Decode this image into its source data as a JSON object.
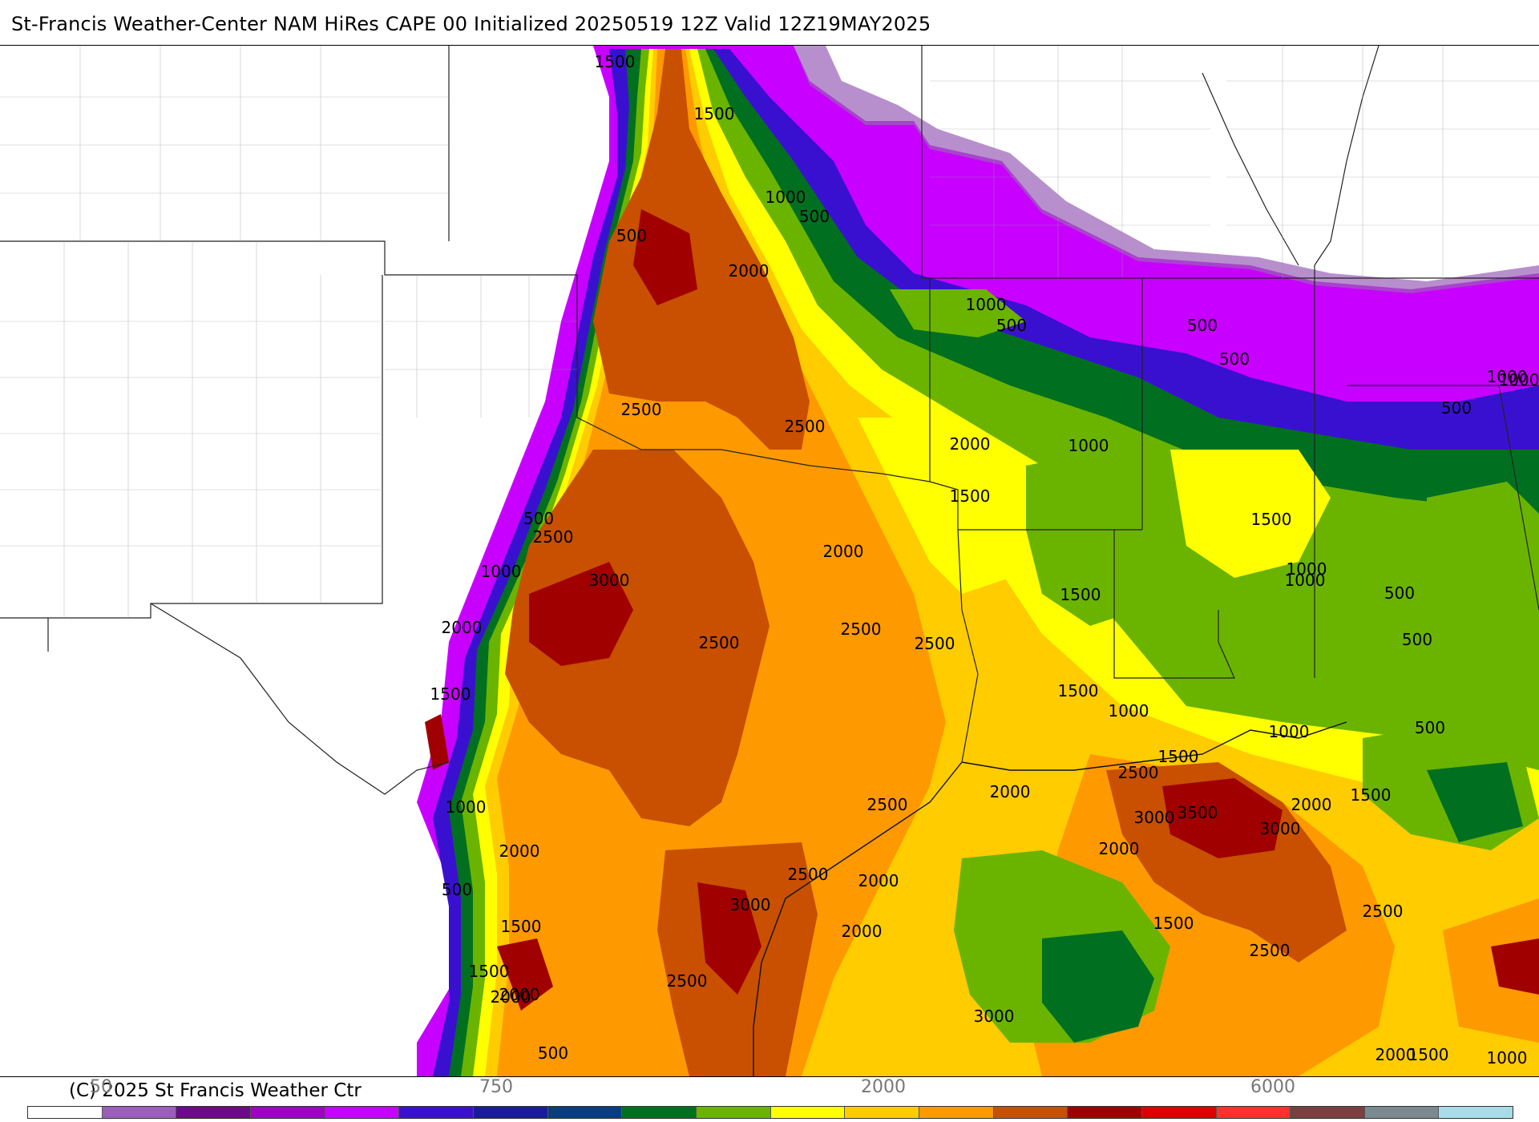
{
  "header": {
    "title": "St-Francis Weather-Center NAM HiRes CAPE  00 Initialized 20250519 12Z Valid 12Z19MAY2025"
  },
  "footer": {
    "copyright": "(C) 2025 St Francis Weather Ctr"
  },
  "legend": {
    "colors": [
      "#ffffff",
      "#9a5fb8",
      "#6a0a8c",
      "#a000c8",
      "#c800ff",
      "#3a10d0",
      "#1a1aa0",
      "#0a3c80",
      "#007020",
      "#6ab400",
      "#ffff00",
      "#ffcc00",
      "#ff9900",
      "#c85000",
      "#a00000",
      "#dc0000",
      "#ff3030",
      "#7a4040",
      "#7a8a90",
      "#a8dce8"
    ],
    "tick_labels": [
      {
        "key": "t50",
        "text": "50"
      },
      {
        "key": "t750",
        "text": "750"
      },
      {
        "key": "t2000",
        "text": "2000"
      },
      {
        "key": "t6000",
        "text": "6000"
      }
    ]
  },
  "map": {
    "contour_labels": [
      "1500",
      "1500",
      "1000",
      "500",
      "500",
      "2000",
      "1000",
      "500",
      "500",
      "500",
      "1000",
      "1000",
      "500",
      "2500",
      "2500",
      "2000",
      "1500",
      "1000",
      "1500",
      "500",
      "1000",
      "2500",
      "2000",
      "3000",
      "1000",
      "1500",
      "1000",
      "500",
      "2000",
      "2500",
      "2500",
      "2500",
      "1500",
      "1000",
      "500",
      "1000",
      "500",
      "1500",
      "2500",
      "1000",
      "1500",
      "2000",
      "2500",
      "2000",
      "3000",
      "3500",
      "2000",
      "3000",
      "2000",
      "1500",
      "500",
      "2000",
      "3000",
      "2500",
      "2000",
      "2500",
      "1500",
      "1500",
      "3000",
      "2500",
      "1500",
      "2000",
      "1000",
      "2500",
      "2000",
      "500",
      "1500",
      "2000"
    ]
  }
}
